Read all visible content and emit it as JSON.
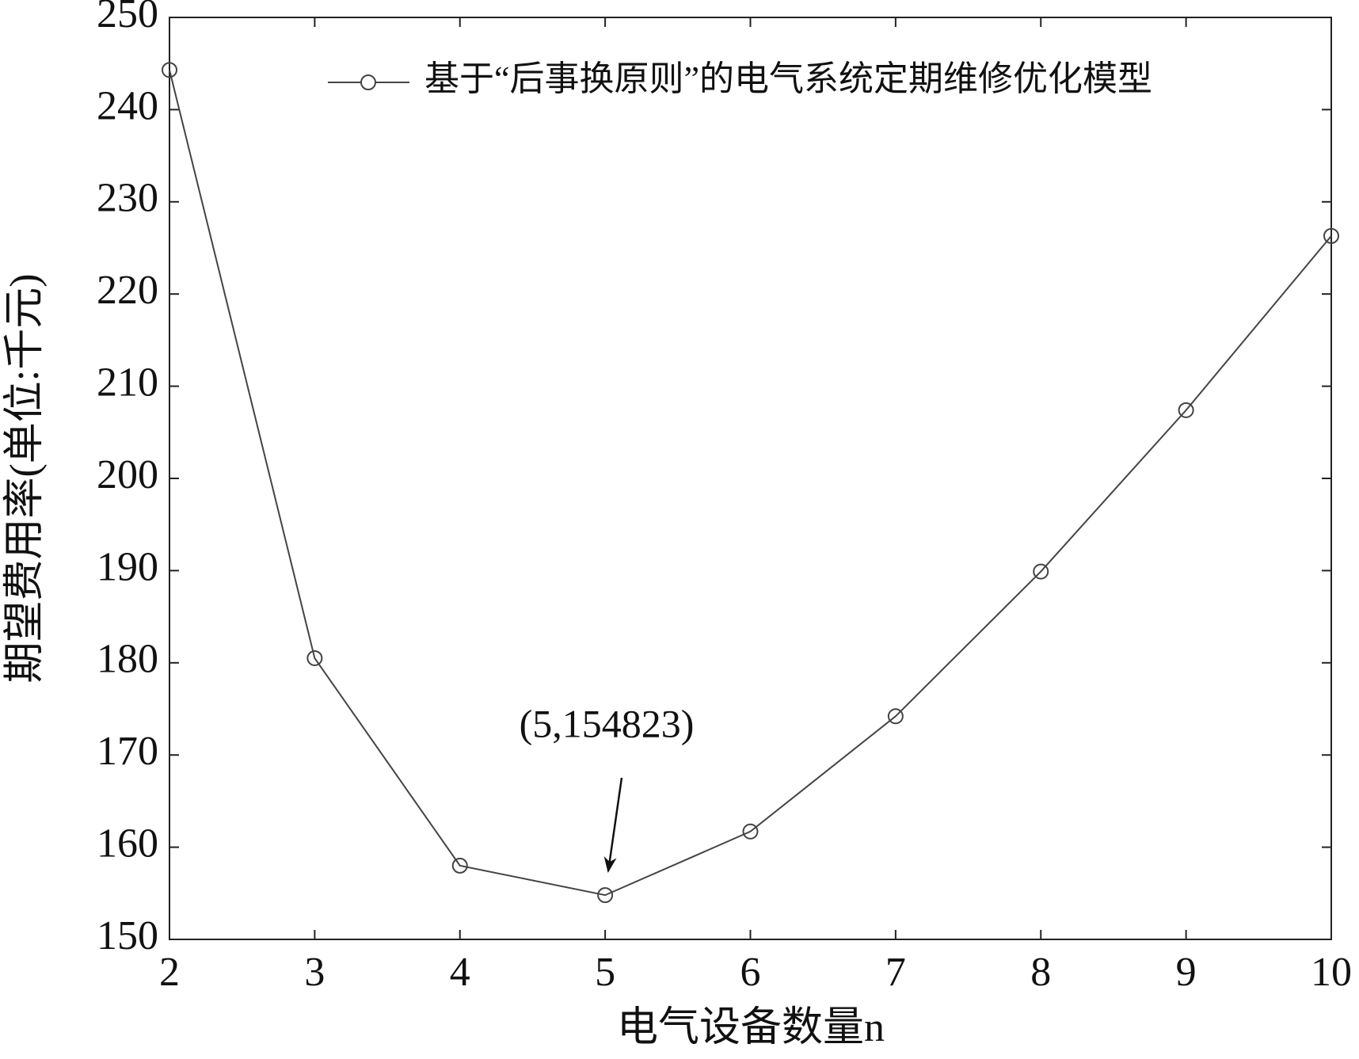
{
  "chart_data": {
    "type": "line",
    "xlabel": "电气设备数量n",
    "ylabel": "期望费用率(单位:千元)",
    "x": [
      2,
      3,
      4,
      5,
      6,
      7,
      8,
      9,
      10
    ],
    "series": [
      {
        "name": "基于“后事换原则”的电气系统定期维修优化模型",
        "color": "#444444",
        "values": [
          244.3,
          180.5,
          158,
          154.8,
          161.7,
          174.2,
          189.9,
          207.4,
          226.3
        ]
      }
    ],
    "annotations": [
      {
        "text": "(5,154823)"
      }
    ],
    "xlim": [
      2,
      10
    ],
    "xticks": [
      2,
      3,
      4,
      5,
      6,
      7,
      8,
      9,
      10
    ],
    "ylim": [
      150,
      250
    ],
    "yticks": [
      150,
      160,
      170,
      180,
      190,
      200,
      210,
      220,
      230,
      240,
      250
    ],
    "grid": false,
    "legend": "upper right"
  }
}
